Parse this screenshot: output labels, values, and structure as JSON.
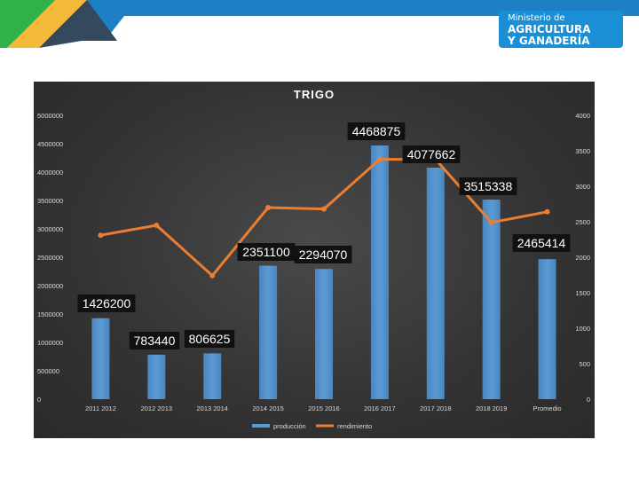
{
  "brand": {
    "line1": "Ministerio de",
    "line2": "AGRICULTURA",
    "line3": "Y GANADERÍA",
    "color": "#1a8fd6"
  },
  "colors": {
    "bar": "#5b9bd5",
    "line": "#ed7d31",
    "background": "#333333",
    "banner_blue": "#1d7fc4",
    "banner_green": "#2db34a",
    "banner_yellow": "#f4b93a"
  },
  "chart_data": {
    "type": "bar",
    "title": "TRIGO",
    "categories": [
      "2011 2012",
      "2012 2013",
      "2013 2014",
      "2014 2015",
      "2015 2016",
      "2016 2017",
      "2017 2018",
      "2018 2019",
      "Promedio"
    ],
    "series": [
      {
        "name": "producción",
        "type": "bar",
        "axis": "left",
        "values": [
          1426200,
          783440,
          806625,
          2351100,
          2294070,
          4468875,
          4077662,
          3515338,
          2465414
        ]
      },
      {
        "name": "rendimiento",
        "type": "line",
        "axis": "right",
        "values": [
          2310,
          2450,
          1740,
          2700,
          2680,
          3380,
          3380,
          2490,
          2640
        ]
      }
    ],
    "data_labels": [
      "1426200",
      "783440",
      "806625",
      "2351100",
      "2294070",
      "4468875",
      "4077662",
      "3515338",
      "2465414"
    ],
    "left_axis": {
      "ylim": [
        0,
        5000000
      ],
      "ticks": [
        "0",
        "500000",
        "1000000",
        "1500000",
        "2000000",
        "2500000",
        "3000000",
        "3500000",
        "4000000",
        "4500000",
        "5000000"
      ]
    },
    "right_axis": {
      "ylim": [
        0,
        4000
      ],
      "ticks": [
        "0",
        "500",
        "1000",
        "1500",
        "2000",
        "2500",
        "3000",
        "3500",
        "4000"
      ]
    },
    "grid": false,
    "legend": "bottom"
  }
}
